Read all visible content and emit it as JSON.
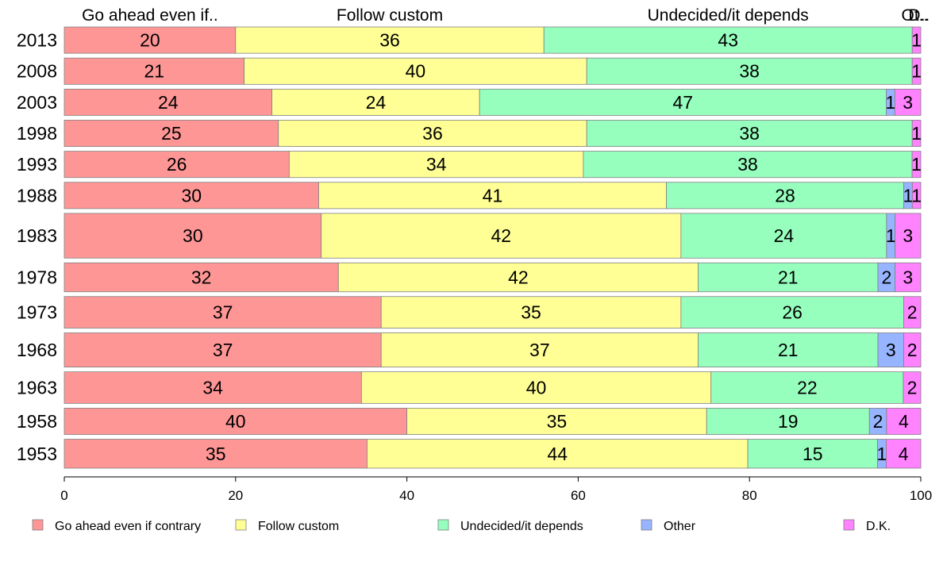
{
  "chart_data": {
    "type": "bar",
    "orientation": "horizontal",
    "stacked": true,
    "categories": [
      "2013",
      "2008",
      "2003",
      "1998",
      "1993",
      "1988",
      "1983",
      "1978",
      "1973",
      "1968",
      "1963",
      "1958",
      "1953"
    ],
    "series": [
      {
        "name": "Go ahead even if contrary",
        "color": "#FF9696",
        "values": [
          20,
          21,
          24,
          25,
          26,
          30,
          30,
          32,
          37,
          37,
          34,
          40,
          35
        ]
      },
      {
        "name": "Follow custom",
        "color": "#FFFF96",
        "values": [
          36,
          40,
          24,
          36,
          34,
          41,
          42,
          42,
          35,
          37,
          40,
          35,
          44
        ]
      },
      {
        "name": "Undecided/it depends",
        "color": "#96FFBE",
        "values": [
          43,
          38,
          47,
          38,
          38,
          28,
          24,
          21,
          26,
          21,
          22,
          19,
          15
        ]
      },
      {
        "name": "Other",
        "color": "#96B4FF",
        "values": [
          0,
          0,
          1,
          0,
          0,
          1,
          1,
          2,
          0,
          3,
          0,
          2,
          1
        ]
      },
      {
        "name": "D.K.",
        "color": "#FF82FF",
        "values": [
          1,
          1,
          3,
          1,
          1,
          1,
          3,
          3,
          2,
          2,
          2,
          4,
          4
        ]
      }
    ],
    "category_weights": [
      1,
      1,
      1,
      1,
      1,
      1,
      1.7,
      1.1,
      1.2,
      1.3,
      1.2,
      1,
      1.1
    ],
    "column_headers": [
      "Go ahead even if..",
      "Follow custom",
      "Undecided/it depends",
      "Ot..",
      "D.."
    ],
    "xlim": [
      0,
      100
    ],
    "xticks": [
      "0",
      "20",
      "40",
      "60",
      "80",
      "100"
    ],
    "legend_position": "bottom",
    "title": "",
    "xlabel": "",
    "ylabel": ""
  }
}
